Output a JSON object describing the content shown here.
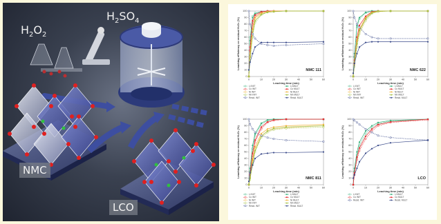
{
  "illustration": {
    "label_h2o2": {
      "main": "H",
      "sub1": "2",
      "mid": "O",
      "sub2": "2"
    },
    "label_h2so4": {
      "main": "H",
      "sub1": "2",
      "mid": "SO",
      "sub2": "4"
    },
    "label_nmc": "NMC",
    "label_lco": "LCO"
  },
  "charts": {
    "ylabel": "Leaching efficiency or residual H₂O₂ (%)",
    "xlabel": "Leaching time (min)",
    "x_ticks": [
      "0",
      "10",
      "20",
      "30",
      "40",
      "50",
      "60"
    ],
    "y_ticks": [
      "0",
      "10",
      "20",
      "30",
      "40",
      "50",
      "60",
      "70",
      "80",
      "90",
      "100"
    ],
    "legend_left": [
      "Li INIT",
      "Co INIT",
      "Ni INIT",
      "Mn INIT",
      "Resid. INIT"
    ],
    "legend_right": [
      "Li MULT",
      "Co MULT",
      "Ni MULT",
      "Mn MULT",
      "Resid. MULT"
    ],
    "legend_lco_left": [
      "Li INIT",
      "Co INIT",
      "Resid. INIT"
    ],
    "legend_lco_right": [
      "Li MULT",
      "Co MULT",
      "Resid. MULT"
    ],
    "colors": {
      "li": "#35b07a",
      "co": "#e4262b",
      "ni": "#f0b23a",
      "mn": "#a0c040",
      "resid": "#3a4a8a"
    }
  },
  "chart_data": [
    {
      "type": "line",
      "title": "NMC 111",
      "x": [
        0,
        1,
        3,
        5,
        10,
        15,
        20,
        30,
        60
      ],
      "series": [
        {
          "name": "Li INIT",
          "values": [
            0,
            60,
            92,
            97,
            99,
            100,
            100,
            100,
            100
          ]
        },
        {
          "name": "Li MULT",
          "values": [
            0,
            55,
            90,
            96,
            99,
            100,
            100,
            100,
            100
          ]
        },
        {
          "name": "Co INIT",
          "values": [
            0,
            40,
            80,
            92,
            98,
            100,
            100,
            100,
            100
          ]
        },
        {
          "name": "Co MULT",
          "values": [
            0,
            45,
            85,
            94,
            99,
            100,
            100,
            100,
            100
          ]
        },
        {
          "name": "Ni INIT",
          "values": [
            0,
            30,
            70,
            88,
            96,
            99,
            100,
            100,
            100
          ]
        },
        {
          "name": "Ni MULT",
          "values": [
            0,
            35,
            72,
            90,
            97,
            99,
            100,
            100,
            100
          ]
        },
        {
          "name": "Mn INIT",
          "values": [
            0,
            25,
            60,
            82,
            94,
            98,
            99,
            100,
            100
          ]
        },
        {
          "name": "Mn MULT",
          "values": [
            0,
            30,
            65,
            85,
            95,
            98,
            99,
            100,
            100
          ]
        },
        {
          "name": "Resid. INIT",
          "values": [
            100,
            80,
            65,
            58,
            50,
            48,
            47,
            48,
            50
          ]
        },
        {
          "name": "Resid. MULT",
          "values": [
            10,
            22,
            35,
            45,
            52,
            52,
            52,
            52,
            53
          ]
        }
      ],
      "ylim": [
        0,
        100
      ],
      "xlim": [
        0,
        60
      ]
    },
    {
      "type": "line",
      "title": "NMC 622",
      "x": [
        0,
        1,
        3,
        5,
        10,
        15,
        20,
        30,
        60
      ],
      "series": [
        {
          "name": "Li INIT",
          "values": [
            0,
            30,
            75,
            88,
            97,
            100,
            100,
            100,
            100
          ]
        },
        {
          "name": "Li MULT",
          "values": [
            0,
            35,
            78,
            90,
            98,
            100,
            100,
            100,
            100
          ]
        },
        {
          "name": "Co INIT",
          "values": [
            0,
            20,
            55,
            72,
            90,
            98,
            100,
            100,
            100
          ]
        },
        {
          "name": "Co MULT",
          "values": [
            0,
            25,
            60,
            78,
            92,
            99,
            100,
            100,
            100
          ]
        },
        {
          "name": "Ni INIT",
          "values": [
            0,
            18,
            50,
            68,
            88,
            97,
            99,
            100,
            100
          ]
        },
        {
          "name": "Ni MULT",
          "values": [
            0,
            22,
            55,
            72,
            90,
            98,
            100,
            100,
            100
          ]
        },
        {
          "name": "Mn INIT",
          "values": [
            0,
            15,
            45,
            65,
            85,
            96,
            99,
            100,
            100
          ]
        },
        {
          "name": "Mn MULT",
          "values": [
            0,
            20,
            50,
            70,
            88,
            97,
            100,
            100,
            100
          ]
        },
        {
          "name": "Resid. INIT",
          "values": [
            100,
            90,
            80,
            75,
            65,
            60,
            58,
            58,
            58
          ]
        },
        {
          "name": "Resid. MULT",
          "values": [
            5,
            20,
            35,
            45,
            52,
            53,
            53,
            53,
            53
          ]
        }
      ],
      "ylim": [
        0,
        100
      ],
      "xlim": [
        0,
        60
      ]
    },
    {
      "type": "line",
      "title": "NMC 811",
      "x": [
        0,
        1,
        3,
        5,
        10,
        15,
        20,
        30,
        60
      ],
      "series": [
        {
          "name": "Li INIT",
          "values": [
            0,
            20,
            55,
            75,
            92,
            98,
            100,
            100,
            100
          ]
        },
        {
          "name": "Li MULT",
          "values": [
            0,
            25,
            60,
            78,
            94,
            99,
            100,
            100,
            100
          ]
        },
        {
          "name": "Co INIT",
          "values": [
            0,
            15,
            45,
            65,
            85,
            95,
            98,
            100,
            100
          ]
        },
        {
          "name": "Co MULT",
          "values": [
            0,
            18,
            48,
            68,
            88,
            96,
            99,
            100,
            100
          ]
        },
        {
          "name": "Ni INIT",
          "values": [
            0,
            10,
            35,
            55,
            75,
            82,
            85,
            87,
            90
          ]
        },
        {
          "name": "Ni MULT",
          "values": [
            0,
            12,
            38,
            58,
            78,
            85,
            88,
            90,
            92
          ]
        },
        {
          "name": "Mn INIT",
          "values": [
            0,
            8,
            30,
            50,
            72,
            80,
            84,
            86,
            88
          ]
        },
        {
          "name": "Mn MULT",
          "values": [
            0,
            10,
            32,
            52,
            74,
            82,
            86,
            88,
            90
          ]
        },
        {
          "name": "Resid. INIT",
          "values": [
            100,
            92,
            85,
            80,
            75,
            72,
            70,
            68,
            66
          ]
        },
        {
          "name": "Resid. MULT",
          "values": [
            5,
            18,
            30,
            40,
            47,
            48,
            49,
            49,
            50
          ]
        }
      ],
      "ylim": [
        0,
        100
      ],
      "xlim": [
        0,
        60
      ]
    },
    {
      "type": "line",
      "title": "LCO",
      "x": [
        0,
        1,
        3,
        5,
        10,
        15,
        20,
        30,
        60
      ],
      "series": [
        {
          "name": "Li INIT",
          "values": [
            0,
            20,
            45,
            60,
            78,
            88,
            93,
            97,
            100
          ]
        },
        {
          "name": "Li MULT",
          "values": [
            0,
            25,
            50,
            65,
            82,
            90,
            95,
            98,
            100
          ]
        },
        {
          "name": "Co INIT",
          "values": [
            0,
            15,
            38,
            52,
            70,
            82,
            90,
            95,
            99
          ]
        },
        {
          "name": "Co MULT",
          "values": [
            0,
            18,
            42,
            56,
            74,
            85,
            92,
            96,
            100
          ]
        },
        {
          "name": "Resid. INIT",
          "values": [
            100,
            98,
            95,
            92,
            85,
            80,
            75,
            72,
            68
          ]
        },
        {
          "name": "Resid. MULT",
          "values": [
            10,
            15,
            25,
            35,
            48,
            55,
            60,
            64,
            68
          ]
        }
      ],
      "ylim": [
        0,
        100
      ],
      "xlim": [
        0,
        60
      ]
    }
  ]
}
